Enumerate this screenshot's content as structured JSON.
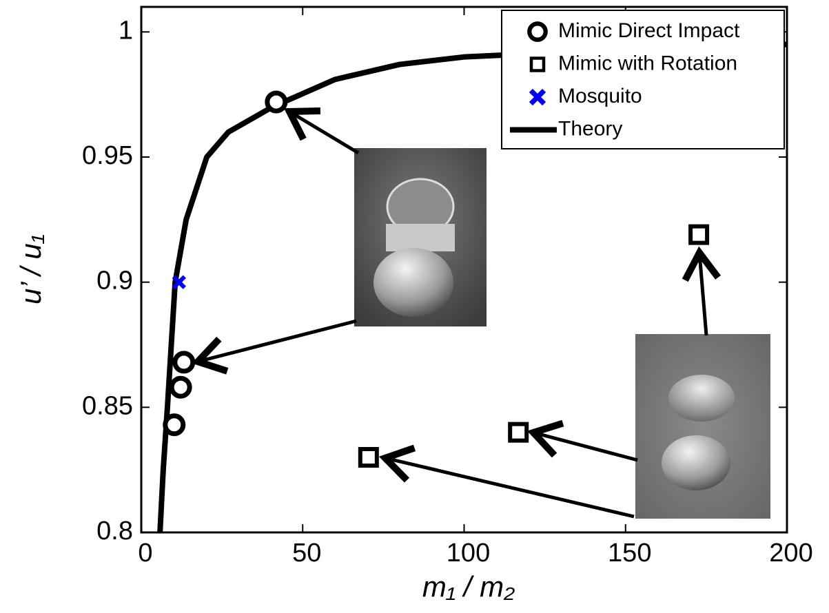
{
  "chart_data": {
    "type": "scatter",
    "x_label": "m₁ / m₂",
    "y_label": "u’ / u₁",
    "xlim": [
      0,
      200
    ],
    "ylim": [
      0.8,
      1.01
    ],
    "xticks": [
      0,
      50,
      100,
      150,
      200
    ],
    "yticks": [
      0.8,
      0.85,
      0.9,
      0.95,
      1
    ],
    "grid": false,
    "legend": "upper right",
    "series": [
      {
        "name": "Mimic Direct Impact",
        "color": "#000000",
        "marker": "circle",
        "x": [
          41.8,
          13.2,
          12.2,
          10.2
        ],
        "values": [
          0.972,
          0.868,
          0.858,
          0.843
        ]
      },
      {
        "name": "Mimic with Rotation",
        "color": "#000000",
        "marker": "square",
        "x": [
          116.8,
          70.4,
          172.7
        ],
        "values": [
          0.84,
          0.83,
          0.919
        ]
      },
      {
        "name": "Mosquito",
        "color": "#0000ff",
        "marker": "x",
        "x": [
          11.7
        ],
        "values": [
          0.9
        ]
      },
      {
        "name": "Theory",
        "color": "#000000",
        "marker": "line",
        "x": [
          5.8,
          6.8,
          8.1,
          10.5,
          13.9,
          20.3,
          27,
          40.6,
          60,
          80,
          100,
          150,
          200
        ],
        "values": [
          0.8,
          0.825,
          0.85,
          0.9,
          0.925,
          0.95,
          0.96,
          0.97,
          0.981,
          0.987,
          0.99,
          0.993,
          0.995
        ]
      }
    ]
  }
}
